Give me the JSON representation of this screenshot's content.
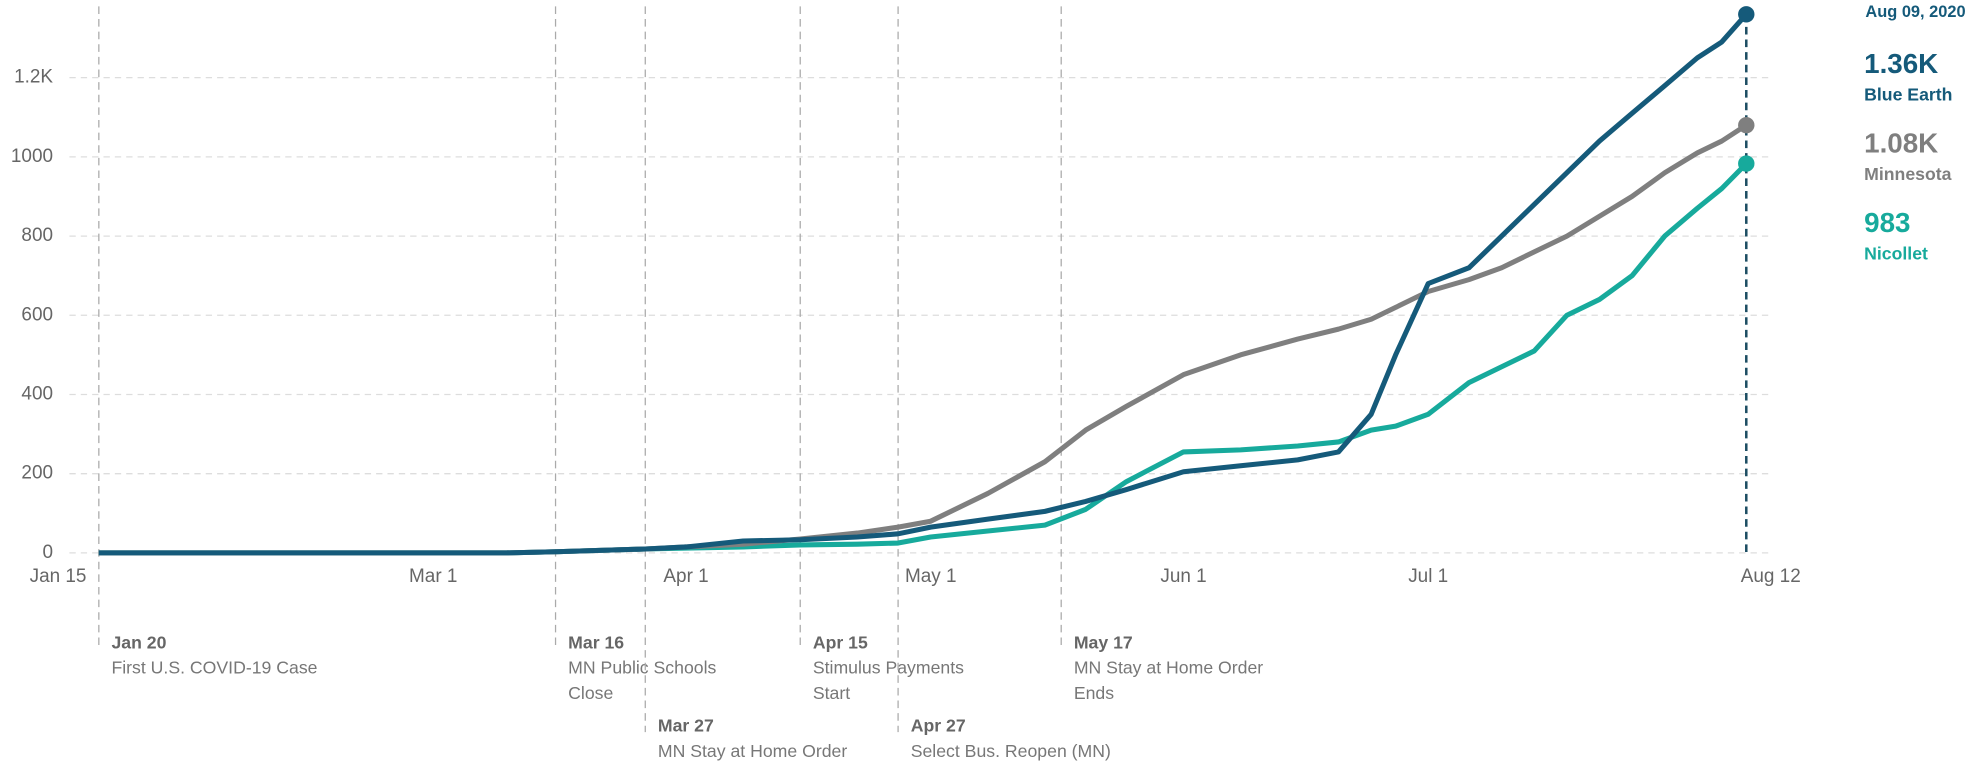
{
  "chart_data": {
    "type": "line",
    "x": [
      "Jan 20",
      "Mar 10",
      "Mar 16",
      "Mar 27",
      "Apr 1",
      "Apr 8",
      "Apr 15",
      "Apr 22",
      "Apr 27",
      "May 1",
      "May 8",
      "May 15",
      "May 20",
      "May 25",
      "Jun 1",
      "Jun 8",
      "Jun 15",
      "Jun 20",
      "Jun 24",
      "Jun 27",
      "Jul 1",
      "Jul 6",
      "Jul 10",
      "Jul 14",
      "Jul 18",
      "Jul 22",
      "Jul 26",
      "Jul 30",
      "Aug 3",
      "Aug 6",
      "Aug 9"
    ],
    "series": [
      {
        "name": "Blue Earth",
        "color": "#155a7a",
        "end_label": "1.36K",
        "values": [
          0,
          0,
          3,
          10,
          15,
          30,
          33,
          40,
          48,
          65,
          85,
          105,
          130,
          160,
          205,
          220,
          235,
          255,
          350,
          500,
          680,
          720,
          800,
          880,
          960,
          1040,
          1110,
          1180,
          1250,
          1290,
          1360
        ]
      },
      {
        "name": "Minnesota",
        "color": "#7f7f7f",
        "end_label": "1.08K",
        "values": [
          0,
          0,
          3,
          10,
          15,
          22,
          35,
          50,
          65,
          80,
          150,
          230,
          310,
          370,
          450,
          500,
          540,
          565,
          590,
          620,
          660,
          690,
          720,
          760,
          800,
          850,
          900,
          960,
          1010,
          1040,
          1080
        ]
      },
      {
        "name": "Nicollet",
        "color": "#17aa9c",
        "end_label": "983",
        "values": [
          0,
          0,
          3,
          10,
          12,
          15,
          20,
          22,
          25,
          40,
          55,
          70,
          110,
          180,
          255,
          260,
          270,
          280,
          310,
          320,
          350,
          430,
          470,
          510,
          600,
          640,
          700,
          800,
          870,
          920,
          983
        ]
      }
    ],
    "hover_date": "Aug 09, 2020",
    "xlim": [
      "Jan 15",
      "Aug 12"
    ],
    "xticks": [
      "Jan 15",
      "Mar 1",
      "Apr 1",
      "May 1",
      "Jun 1",
      "Jul 1",
      "Aug 12"
    ],
    "ylim": [
      0,
      1380
    ],
    "yticks": [
      0,
      200,
      400,
      600,
      800,
      1000,
      {
        "value": 1200,
        "label": "1.2K"
      }
    ],
    "grid": true,
    "events": [
      {
        "date": "Jan 20",
        "text": [
          "First U.S. COVID-19 Case"
        ]
      },
      {
        "date": "Mar 16",
        "text": [
          "MN Public Schools",
          "Close"
        ]
      },
      {
        "date": "Mar 27",
        "text": [
          "MN Stay at Home Order"
        ]
      },
      {
        "date": "Apr 15",
        "text": [
          "Stimulus Payments",
          "Start"
        ]
      },
      {
        "date": "Apr 27",
        "text": [
          "Select Bus. Reopen (MN)"
        ]
      },
      {
        "date": "May 17",
        "text": [
          "MN Stay at Home Order",
          "Ends"
        ]
      }
    ]
  }
}
